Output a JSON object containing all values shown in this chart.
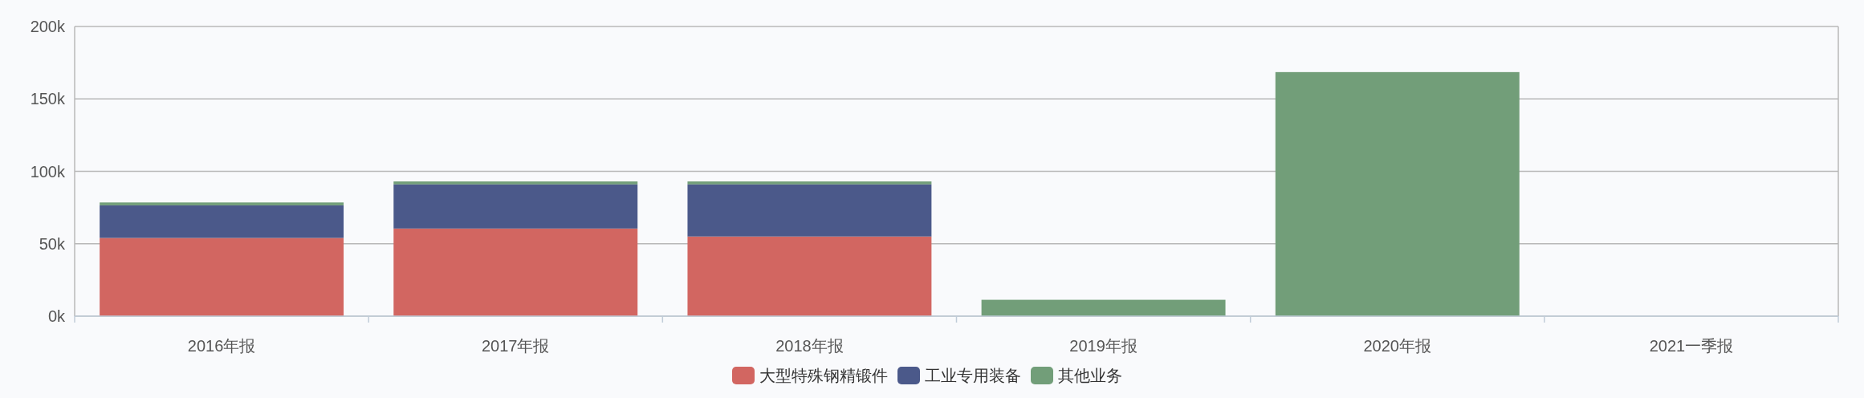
{
  "chart_data": {
    "type": "bar",
    "stacked": true,
    "categories": [
      "2016年报",
      "2017年报",
      "2018年报",
      "2019年报",
      "2020年报",
      "2021一季报"
    ],
    "series": [
      {
        "name": "大型特殊钢精锻件",
        "color": "#d26661",
        "values": [
          54000,
          60500,
          55000,
          null,
          null,
          null
        ]
      },
      {
        "name": "工业专用装备",
        "color": "#4b598a",
        "values": [
          22500,
          30500,
          36000,
          null,
          null,
          null
        ]
      },
      {
        "name": "其他业务",
        "color": "#729e79",
        "values": [
          2000,
          2000,
          2000,
          11300,
          168500,
          null
        ]
      }
    ],
    "ylim": [
      0,
      200000
    ],
    "yticks": [
      {
        "value": 0,
        "label": "0k"
      },
      {
        "value": 50000,
        "label": "50k"
      },
      {
        "value": 100000,
        "label": "100k"
      },
      {
        "value": 150000,
        "label": "150k"
      },
      {
        "value": 200000,
        "label": "200k"
      }
    ],
    "grid": "y",
    "legend": "bottom"
  }
}
